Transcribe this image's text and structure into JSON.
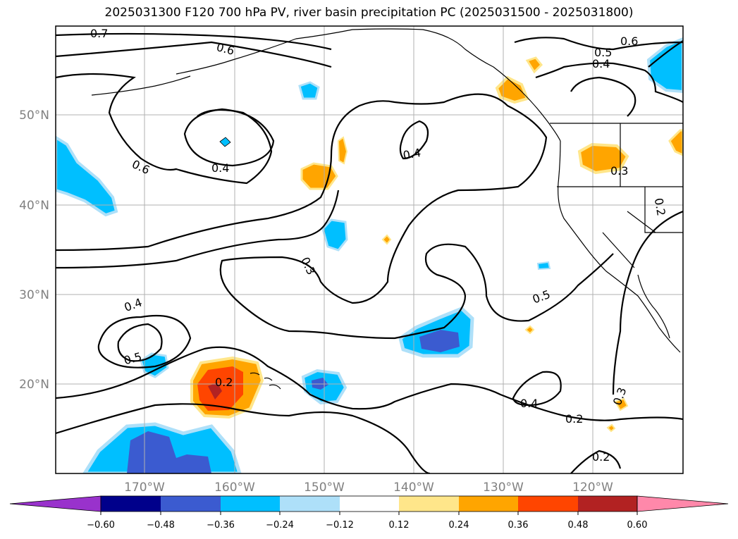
{
  "title": "2025031300 F120 700 hPa PV, river basin precipitation PC (2025031500 - 2025031800)",
  "map": {
    "lat_labels": [
      "50°N",
      "40°N",
      "30°N",
      "20°N"
    ],
    "lon_labels": [
      "170°W",
      "160°W",
      "150°W",
      "140°W",
      "130°W",
      "120°W"
    ],
    "contour_labels": [
      "0.7",
      "0.6",
      "0.6",
      "0.5",
      "0.4",
      "0.4",
      "0.6",
      "0.4",
      "0.3",
      "0.2",
      "0.3",
      "0.4",
      "0.5",
      "0.2",
      "0.5",
      "0.4",
      "0.3",
      "0.2",
      "0.2"
    ],
    "colors": {
      "strong_negative": "#3b5bd0",
      "medium_negative": "#00bfff",
      "weak_negative": "#aee0f9",
      "weak_positive": "#ffe68a",
      "medium_positive": "#ffa500",
      "strong_positive": "#ff4500",
      "deep_positive": "#b22222"
    }
  },
  "colorbar": {
    "ticks": [
      "−0.60",
      "−0.48",
      "−0.36",
      "−0.24",
      "−0.12",
      "0.12",
      "0.24",
      "0.36",
      "0.48",
      "0.60"
    ],
    "colors": [
      "#9932cc",
      "#9932cc",
      "#00008b",
      "#3b5bd0",
      "#00bfff",
      "#aee0f9",
      "#ffffff",
      "#ffe68a",
      "#ffa500",
      "#ff4500",
      "#b22222",
      "#ff88aa",
      "#ff88aa"
    ]
  }
}
